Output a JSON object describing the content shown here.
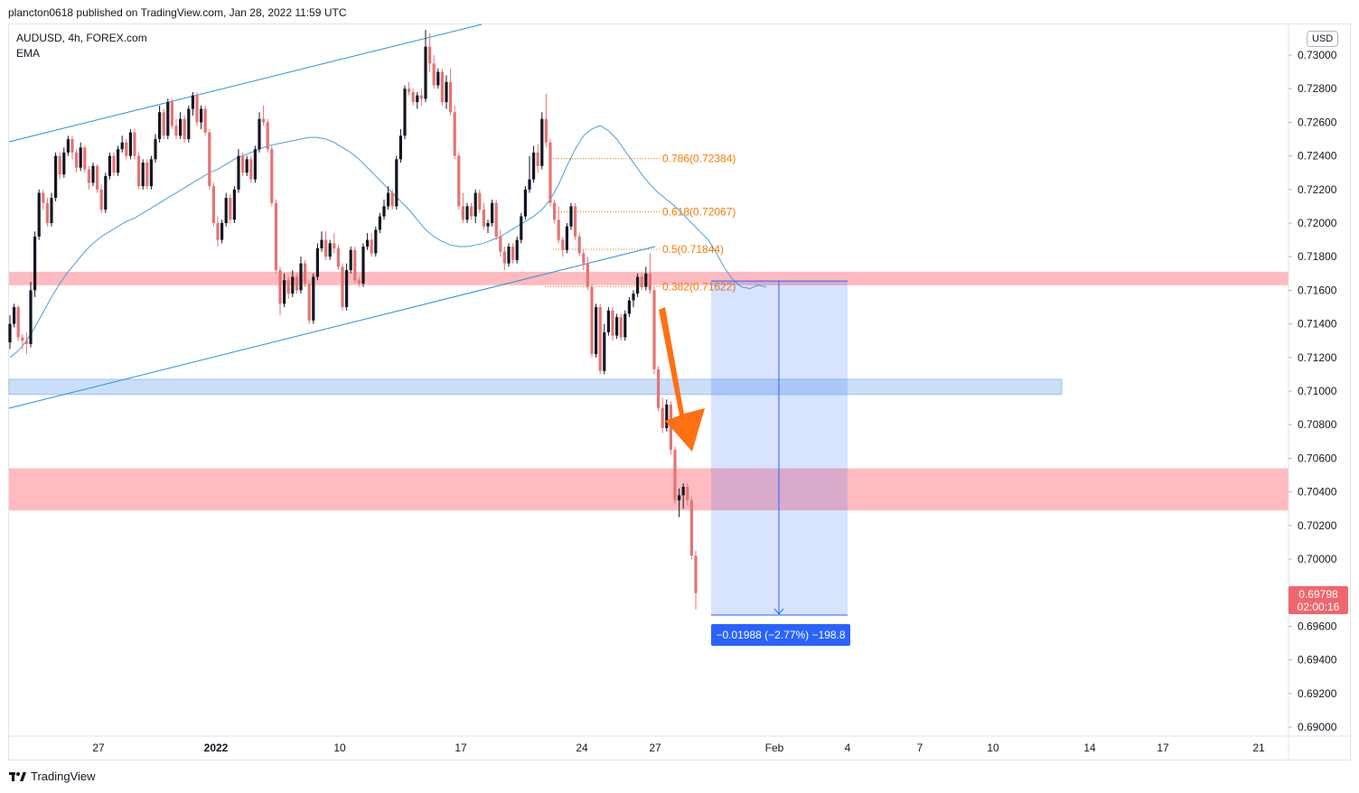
{
  "header": {
    "attribution": "plancton0618 published on TradingView.com, Jan 28, 2022 11:59 UTC",
    "symbol": "AUDUSD, 4h, FOREX.com",
    "indicator": "EMA",
    "currency": "USD"
  },
  "footer": {
    "brand": "TradingView"
  },
  "colors": {
    "up": "#131722",
    "down": "#e57373",
    "ema": "#4a9fdc",
    "resistance_zone": "#ff9ea4",
    "support_zone": "#9fc2f3",
    "fib": "#f57c00",
    "measure": "#2962ff",
    "price_badge": "#f0666e"
  },
  "chart_data": {
    "type": "candlestick",
    "title": "AUDUSD, 4h, FOREX.com",
    "ylim": [
      0.689,
      0.7305
    ],
    "y_ticks": [
      "0.73000",
      "0.72800",
      "0.72600",
      "0.72400",
      "0.72200",
      "0.72000",
      "0.71800",
      "0.71600",
      "0.71400",
      "0.71200",
      "0.71000",
      "0.70800",
      "0.70600",
      "0.70400",
      "0.70200",
      "0.70000",
      "0.69600",
      "0.69400",
      "0.69200",
      "0.69000"
    ],
    "x_ticks": [
      "27",
      "2022",
      "10",
      "17",
      "24",
      "27",
      "Feb",
      "4",
      "7",
      "10",
      "14",
      "17",
      "21"
    ],
    "last_price": "0.69798",
    "countdown": "02:00:16",
    "fib_levels": [
      {
        "label": "0.786(0.72384)",
        "value": 0.72384
      },
      {
        "label": "0.618(0.72067)",
        "value": 0.72067
      },
      {
        "label": "0.5(0.71844)",
        "value": 0.71844
      },
      {
        "label": "0.382(0.71622)",
        "value": 0.71622
      }
    ],
    "zones": [
      {
        "name": "resistance-zone-upper",
        "from": 0.7163,
        "to": 0.7171
      },
      {
        "name": "support-zone-blue",
        "from": 0.7098,
        "to": 0.7107
      },
      {
        "name": "resistance-zone-lower",
        "from": 0.7029,
        "to": 0.7054
      }
    ],
    "measure": {
      "from": 0.71655,
      "to": 0.69667,
      "label": "−0.01988 (−2.77%) −198.8"
    },
    "candles": [
      [
        0.7129,
        0.7145,
        0.7125,
        0.714
      ],
      [
        0.714,
        0.7152,
        0.7138,
        0.715
      ],
      [
        0.715,
        0.7151,
        0.713,
        0.7132
      ],
      [
        0.7132,
        0.7134,
        0.7125,
        0.713
      ],
      [
        0.713,
        0.7135,
        0.7122,
        0.7128
      ],
      [
        0.7128,
        0.7165,
        0.7126,
        0.716
      ],
      [
        0.716,
        0.7195,
        0.7156,
        0.7192
      ],
      [
        0.7192,
        0.722,
        0.719,
        0.7218
      ],
      [
        0.7218,
        0.722,
        0.7208,
        0.7212
      ],
      [
        0.7212,
        0.7215,
        0.7198,
        0.72
      ],
      [
        0.72,
        0.7218,
        0.7198,
        0.7215
      ],
      [
        0.7215,
        0.7242,
        0.7213,
        0.724
      ],
      [
        0.724,
        0.7242,
        0.7226,
        0.7229
      ],
      [
        0.7229,
        0.7245,
        0.7227,
        0.7242
      ],
      [
        0.7242,
        0.7252,
        0.724,
        0.725
      ],
      [
        0.725,
        0.7252,
        0.7238,
        0.7242
      ],
      [
        0.7242,
        0.7244,
        0.723,
        0.7233
      ],
      [
        0.7233,
        0.7248,
        0.7231,
        0.7245
      ],
      [
        0.7245,
        0.7246,
        0.723,
        0.7232
      ],
      [
        0.7232,
        0.7234,
        0.722,
        0.7224
      ],
      [
        0.7224,
        0.7236,
        0.7222,
        0.7234
      ],
      [
        0.7234,
        0.7235,
        0.7218,
        0.722
      ],
      [
        0.722,
        0.7223,
        0.7206,
        0.7208
      ],
      [
        0.7208,
        0.723,
        0.7206,
        0.7228
      ],
      [
        0.7228,
        0.7242,
        0.7226,
        0.724
      ],
      [
        0.724,
        0.7242,
        0.7228,
        0.723
      ],
      [
        0.723,
        0.7246,
        0.7228,
        0.7244
      ],
      [
        0.7244,
        0.7252,
        0.7242,
        0.7248
      ],
      [
        0.7248,
        0.725,
        0.7238,
        0.724
      ],
      [
        0.724,
        0.7256,
        0.7238,
        0.7254
      ],
      [
        0.7254,
        0.7256,
        0.7238,
        0.724
      ],
      [
        0.724,
        0.7242,
        0.722,
        0.7222
      ],
      [
        0.7222,
        0.7238,
        0.722,
        0.7236
      ],
      [
        0.7236,
        0.7238,
        0.722,
        0.7222
      ],
      [
        0.7222,
        0.724,
        0.722,
        0.7238
      ],
      [
        0.7238,
        0.7253,
        0.7236,
        0.725
      ],
      [
        0.725,
        0.727,
        0.7248,
        0.7266
      ],
      [
        0.7266,
        0.7268,
        0.725,
        0.7252
      ],
      [
        0.7252,
        0.7274,
        0.725,
        0.7272
      ],
      [
        0.7272,
        0.7274,
        0.7256,
        0.7258
      ],
      [
        0.7258,
        0.7262,
        0.725,
        0.7252
      ],
      [
        0.7252,
        0.7266,
        0.725,
        0.7262
      ],
      [
        0.7262,
        0.7264,
        0.7248,
        0.725
      ],
      [
        0.725,
        0.727,
        0.7248,
        0.7268
      ],
      [
        0.7268,
        0.7278,
        0.7264,
        0.7276
      ],
      [
        0.7276,
        0.7278,
        0.7258,
        0.726
      ],
      [
        0.726,
        0.727,
        0.7256,
        0.7268
      ],
      [
        0.7268,
        0.727,
        0.7252,
        0.7254
      ],
      [
        0.7254,
        0.7256,
        0.722,
        0.7222
      ],
      [
        0.7222,
        0.7224,
        0.7198,
        0.72
      ],
      [
        0.72,
        0.7204,
        0.7186,
        0.719
      ],
      [
        0.719,
        0.7202,
        0.7188,
        0.72
      ],
      [
        0.72,
        0.7218,
        0.7198,
        0.7215
      ],
      [
        0.7215,
        0.7217,
        0.72,
        0.7202
      ],
      [
        0.7202,
        0.7222,
        0.72,
        0.722
      ],
      [
        0.722,
        0.7244,
        0.7218,
        0.724
      ],
      [
        0.724,
        0.7242,
        0.7228,
        0.723
      ],
      [
        0.723,
        0.724,
        0.7228,
        0.7238
      ],
      [
        0.7238,
        0.724,
        0.7224,
        0.7226
      ],
      [
        0.7226,
        0.7246,
        0.7224,
        0.7244
      ],
      [
        0.7244,
        0.7266,
        0.7242,
        0.7262
      ],
      [
        0.7262,
        0.727,
        0.7258,
        0.726
      ],
      [
        0.726,
        0.7262,
        0.7242,
        0.7244
      ],
      [
        0.7244,
        0.7246,
        0.721,
        0.7212
      ],
      [
        0.7212,
        0.7214,
        0.717,
        0.7172
      ],
      [
        0.7172,
        0.7174,
        0.7145,
        0.7152
      ],
      [
        0.7152,
        0.717,
        0.715,
        0.7166
      ],
      [
        0.7166,
        0.7168,
        0.7155,
        0.7158
      ],
      [
        0.7158,
        0.7172,
        0.7156,
        0.7168
      ],
      [
        0.7168,
        0.717,
        0.7158,
        0.716
      ],
      [
        0.716,
        0.718,
        0.7158,
        0.7176
      ],
      [
        0.7176,
        0.7178,
        0.7162,
        0.7164
      ],
      [
        0.7164,
        0.7166,
        0.714,
        0.7142
      ],
      [
        0.7142,
        0.717,
        0.714,
        0.7168
      ],
      [
        0.7168,
        0.7188,
        0.7166,
        0.7185
      ],
      [
        0.7185,
        0.7195,
        0.7183,
        0.719
      ],
      [
        0.719,
        0.7195,
        0.7178,
        0.718
      ],
      [
        0.718,
        0.719,
        0.7178,
        0.7188
      ],
      [
        0.7188,
        0.7194,
        0.7182,
        0.7185
      ],
      [
        0.7185,
        0.7187,
        0.7172,
        0.7174
      ],
      [
        0.7174,
        0.7176,
        0.7148,
        0.715
      ],
      [
        0.715,
        0.7176,
        0.7148,
        0.7172
      ],
      [
        0.7172,
        0.7186,
        0.717,
        0.7184
      ],
      [
        0.7184,
        0.7186,
        0.7164,
        0.7166
      ],
      [
        0.7166,
        0.7168,
        0.7162,
        0.7164
      ],
      [
        0.7164,
        0.7188,
        0.7162,
        0.7186
      ],
      [
        0.7186,
        0.7194,
        0.7184,
        0.719
      ],
      [
        0.719,
        0.7194,
        0.718,
        0.7182
      ],
      [
        0.7182,
        0.7198,
        0.718,
        0.7196
      ],
      [
        0.7196,
        0.7206,
        0.7194,
        0.7204
      ],
      [
        0.7204,
        0.7214,
        0.7202,
        0.721
      ],
      [
        0.721,
        0.7222,
        0.7208,
        0.7218
      ],
      [
        0.7218,
        0.722,
        0.7208,
        0.721
      ],
      [
        0.721,
        0.724,
        0.7208,
        0.7238
      ],
      [
        0.7238,
        0.7256,
        0.7236,
        0.7252
      ],
      [
        0.7252,
        0.7282,
        0.725,
        0.728
      ],
      [
        0.728,
        0.7284,
        0.7276,
        0.7278
      ],
      [
        0.7278,
        0.728,
        0.727,
        0.7272
      ],
      [
        0.7272,
        0.7278,
        0.7268,
        0.7276
      ],
      [
        0.7276,
        0.728,
        0.727,
        0.7274
      ],
      [
        0.7274,
        0.7315,
        0.7272,
        0.7305
      ],
      [
        0.7305,
        0.7313,
        0.729,
        0.7295
      ],
      [
        0.7295,
        0.73,
        0.728,
        0.7282
      ],
      [
        0.7282,
        0.7292,
        0.728,
        0.729
      ],
      [
        0.729,
        0.7292,
        0.727,
        0.7272
      ],
      [
        0.7272,
        0.7288,
        0.7268,
        0.7284
      ],
      [
        0.7284,
        0.7292,
        0.7264,
        0.7266
      ],
      [
        0.7266,
        0.727,
        0.7238,
        0.724
      ],
      [
        0.724,
        0.7242,
        0.7208,
        0.721
      ],
      [
        0.721,
        0.7218,
        0.72,
        0.7202
      ],
      [
        0.7202,
        0.7212,
        0.72,
        0.721
      ],
      [
        0.721,
        0.7212,
        0.7202,
        0.7204
      ],
      [
        0.7204,
        0.722,
        0.72,
        0.7218
      ],
      [
        0.7218,
        0.722,
        0.7206,
        0.7208
      ],
      [
        0.7208,
        0.7212,
        0.7196,
        0.7198
      ],
      [
        0.7198,
        0.7202,
        0.7194,
        0.72
      ],
      [
        0.72,
        0.7214,
        0.7198,
        0.7212
      ],
      [
        0.7212,
        0.7214,
        0.719,
        0.7192
      ],
      [
        0.7192,
        0.7196,
        0.718,
        0.7183
      ],
      [
        0.7183,
        0.7186,
        0.7172,
        0.7176
      ],
      [
        0.7176,
        0.7188,
        0.7174,
        0.7186
      ],
      [
        0.7186,
        0.7188,
        0.7176,
        0.7178
      ],
      [
        0.7178,
        0.7192,
        0.7176,
        0.719
      ],
      [
        0.719,
        0.7206,
        0.7188,
        0.7204
      ],
      [
        0.7204,
        0.7222,
        0.7202,
        0.722
      ],
      [
        0.722,
        0.724,
        0.7218,
        0.7226
      ],
      [
        0.7226,
        0.7246,
        0.7224,
        0.7242
      ],
      [
        0.7242,
        0.7247,
        0.723,
        0.7234
      ],
      [
        0.7234,
        0.7266,
        0.7232,
        0.7262
      ],
      [
        0.7262,
        0.7277,
        0.7245,
        0.7248
      ],
      [
        0.7248,
        0.725,
        0.721,
        0.7212
      ],
      [
        0.7212,
        0.7214,
        0.72,
        0.7202
      ],
      [
        0.7202,
        0.721,
        0.7188,
        0.719
      ],
      [
        0.719,
        0.7192,
        0.718,
        0.7184
      ],
      [
        0.7184,
        0.72,
        0.7182,
        0.7198
      ],
      [
        0.7198,
        0.7212,
        0.7196,
        0.721
      ],
      [
        0.721,
        0.7212,
        0.719,
        0.7192
      ],
      [
        0.7192,
        0.7194,
        0.718,
        0.7182
      ],
      [
        0.7182,
        0.7184,
        0.7172,
        0.7176
      ],
      [
        0.7176,
        0.718,
        0.716,
        0.7162
      ],
      [
        0.7162,
        0.7164,
        0.712,
        0.7122
      ],
      [
        0.7122,
        0.7152,
        0.712,
        0.715
      ],
      [
        0.715,
        0.7152,
        0.711,
        0.7112
      ],
      [
        0.7112,
        0.714,
        0.711,
        0.7135
      ],
      [
        0.7135,
        0.715,
        0.7133,
        0.7148
      ],
      [
        0.7148,
        0.715,
        0.713,
        0.7133
      ],
      [
        0.7133,
        0.7146,
        0.7131,
        0.7144
      ],
      [
        0.7144,
        0.7146,
        0.713,
        0.7132
      ],
      [
        0.7132,
        0.7148,
        0.713,
        0.7146
      ],
      [
        0.7146,
        0.7156,
        0.7144,
        0.7154
      ],
      [
        0.7154,
        0.716,
        0.715,
        0.7158
      ],
      [
        0.7158,
        0.717,
        0.7156,
        0.7168
      ],
      [
        0.7168,
        0.717,
        0.716,
        0.7162
      ],
      [
        0.7162,
        0.7174,
        0.716,
        0.717
      ],
      [
        0.717,
        0.7182,
        0.7158,
        0.716
      ],
      [
        0.716,
        0.7162,
        0.711,
        0.7113
      ],
      [
        0.7113,
        0.7115,
        0.7088,
        0.709
      ],
      [
        0.709,
        0.7096,
        0.7075,
        0.7078
      ],
      [
        0.7078,
        0.7095,
        0.7076,
        0.7092
      ],
      [
        0.7092,
        0.7094,
        0.7062,
        0.7065
      ],
      [
        0.7065,
        0.7067,
        0.7033,
        0.7035
      ],
      [
        0.7035,
        0.7042,
        0.7025,
        0.7038
      ],
      [
        0.7038,
        0.7045,
        0.703,
        0.7043
      ],
      [
        0.7043,
        0.7045,
        0.7032,
        0.7035
      ],
      [
        0.7035,
        0.7037,
        0.7,
        0.7002
      ],
      [
        0.7002,
        0.7005,
        0.697,
        0.69798
      ]
    ],
    "ema": [
      0.712,
      0.7124,
      0.713,
      0.7138,
      0.7147,
      0.7156,
      0.7164,
      0.7171,
      0.7177,
      0.7183,
      0.7188,
      0.7192,
      0.7195,
      0.7198,
      0.7201,
      0.7203,
      0.7206,
      0.7209,
      0.7212,
      0.7215,
      0.7218,
      0.7221,
      0.7224,
      0.7227,
      0.723,
      0.7232,
      0.7235,
      0.7238,
      0.724,
      0.7242,
      0.7244,
      0.7246,
      0.7247,
      0.7248,
      0.7249,
      0.725,
      0.7251,
      0.7251,
      0.725,
      0.7248,
      0.7245,
      0.7242,
      0.7238,
      0.7233,
      0.7228,
      0.7223,
      0.7218,
      0.7213,
      0.7208,
      0.7202,
      0.7196,
      0.7192,
      0.7189,
      0.7187,
      0.7186,
      0.7186,
      0.7187,
      0.7188,
      0.719,
      0.7192,
      0.7195,
      0.7198,
      0.7201,
      0.7204,
      0.7208,
      0.7214,
      0.7223,
      0.7234,
      0.7244,
      0.7252,
      0.7256,
      0.7258,
      0.7255,
      0.725,
      0.7243,
      0.7236,
      0.7229,
      0.7223,
      0.7218,
      0.7214,
      0.721,
      0.7205,
      0.72,
      0.7195,
      0.719,
      0.7182,
      0.7173,
      0.7166,
      0.7162,
      0.7161,
      0.7163,
      0.7162
    ]
  }
}
